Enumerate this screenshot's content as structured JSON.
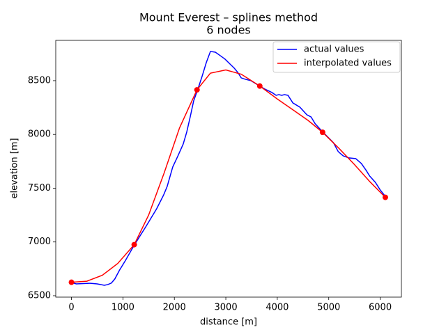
{
  "chart_data": {
    "type": "line",
    "title": "Mount Everest – splines method",
    "subtitle": "6 nodes",
    "x_label": "distance [m]",
    "y_label": "elevation [m]",
    "xlim": [
      -305,
      6412
    ],
    "ylim": [
      6487,
      8875
    ],
    "xticks": [
      0,
      1000,
      2000,
      3000,
      4000,
      5000,
      6000
    ],
    "yticks": [
      6500,
      7000,
      7500,
      8000,
      8500
    ],
    "legend": "upper right",
    "series": [
      {
        "name": "actual values",
        "color": "#0000ff",
        "x": [
          0,
          95,
          366,
          500,
          640,
          706,
          774,
          842,
          937,
          1045,
          1222,
          1452,
          1656,
          1792,
          1860,
          1968,
          2063,
          2172,
          2240,
          2308,
          2375,
          2457,
          2538,
          2620,
          2701,
          2796,
          2891,
          2986,
          3081,
          3163,
          3231,
          3299,
          3380,
          3489,
          3665,
          3760,
          3896,
          3977,
          4031,
          4086,
          4140,
          4208,
          4303,
          4439,
          4574,
          4656,
          4737,
          4887,
          4982,
          5090,
          5185,
          5280,
          5389,
          5525,
          5633,
          5728,
          5796,
          5905,
          6000,
          6108
        ],
        "values": [
          6623,
          6610,
          6616,
          6610,
          6597,
          6604,
          6617,
          6655,
          6740,
          6824,
          6972,
          7147,
          7309,
          7438,
          7516,
          7697,
          7794,
          7911,
          8021,
          8163,
          8312,
          8422,
          8539,
          8668,
          8772,
          8765,
          8733,
          8700,
          8655,
          8617,
          8578,
          8526,
          8513,
          8500,
          8448,
          8422,
          8390,
          8364,
          8370,
          8364,
          8370,
          8364,
          8293,
          8254,
          8183,
          8163,
          8099,
          8021,
          7976,
          7924,
          7840,
          7801,
          7782,
          7775,
          7730,
          7665,
          7613,
          7555,
          7484,
          7419
        ]
      },
      {
        "name": "interpolated values",
        "color": "#ff0000",
        "x": [
          0,
          300,
          600,
          900,
          1220,
          1500,
          1800,
          2100,
          2440,
          2700,
          3000,
          3300,
          3660,
          4000,
          4300,
          4600,
          4880,
          5200,
          5500,
          5800,
          6100
        ],
        "values": [
          6625,
          6635,
          6690,
          6800,
          6975,
          7250,
          7640,
          8060,
          8415,
          8570,
          8600,
          8560,
          8450,
          8330,
          8230,
          8130,
          8020,
          7870,
          7720,
          7560,
          7415
        ]
      }
    ],
    "nodes": {
      "color": "#ff0000",
      "x": [
        0,
        1220,
        2440,
        3660,
        4880,
        6100
      ],
      "values": [
        6625,
        6975,
        8415,
        8450,
        8020,
        7415
      ]
    }
  }
}
